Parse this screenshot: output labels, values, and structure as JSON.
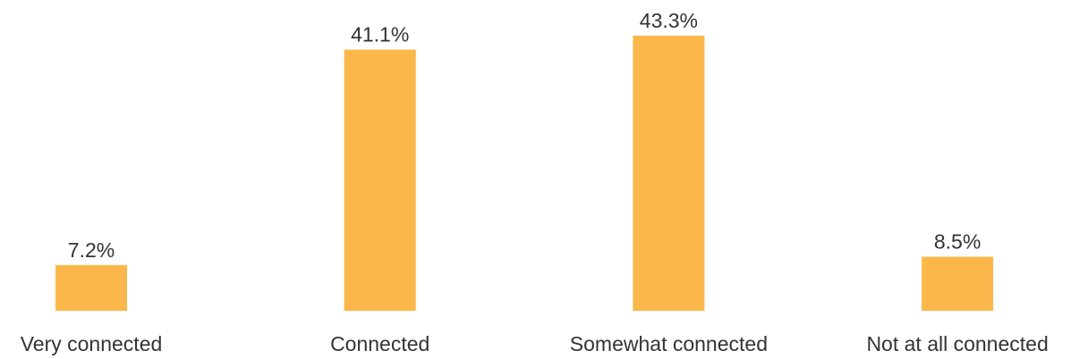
{
  "chart_data": {
    "type": "bar",
    "categories": [
      "Very connected",
      "Connected",
      "Somewhat connected",
      "Not at all connected"
    ],
    "values": [
      7.2,
      41.1,
      43.3,
      8.5
    ],
    "data_labels": [
      "7.2%",
      "41.1%",
      "43.3%",
      "8.5%"
    ],
    "unit": "%",
    "ylim": [
      0,
      43.3
    ],
    "grid": false,
    "legend": "none",
    "bar_color": "#FBB749",
    "text_color": "#333333"
  }
}
